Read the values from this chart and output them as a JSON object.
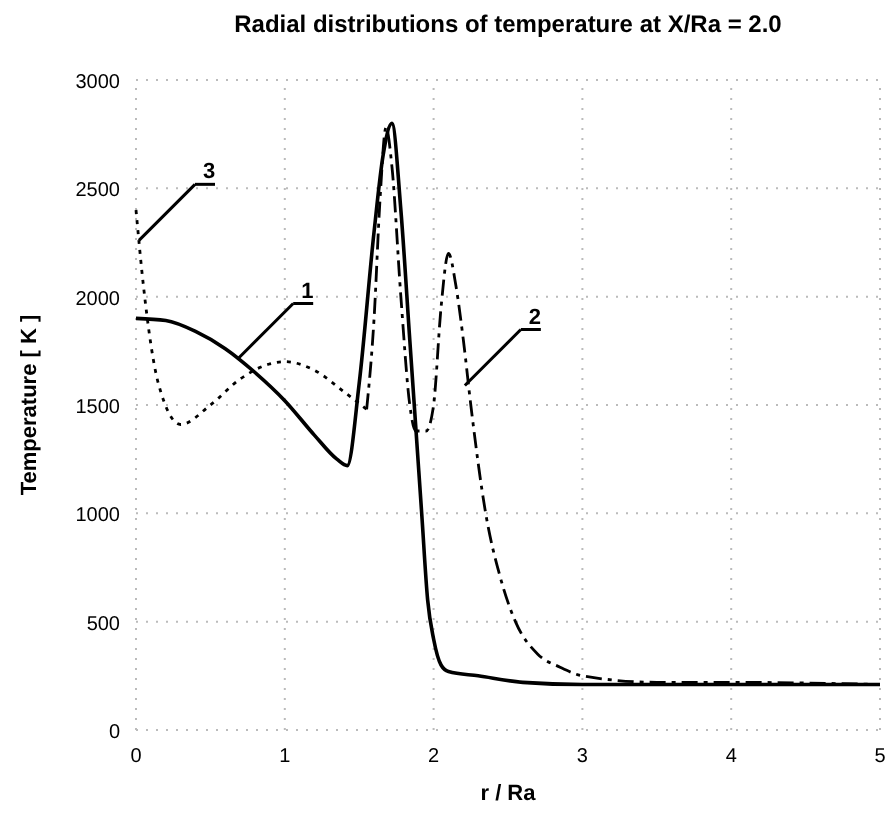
{
  "chart_data": {
    "type": "line",
    "title": "Radial distributions of temperature at X/Ra = 2.0",
    "xlabel": "r / Ra",
    "ylabel": "Temperature  [ K ]",
    "xlim": [
      0,
      5
    ],
    "ylim": [
      0,
      3000
    ],
    "xticks": [
      0,
      1,
      2,
      3,
      4,
      5
    ],
    "yticks": [
      0,
      500,
      1000,
      1500,
      2000,
      2500,
      3000
    ],
    "grid": true,
    "series": [
      {
        "color": "#000000",
        "line_style": "solid",
        "x": [
          0,
          0.2,
          0.4,
          0.6,
          0.8,
          1.0,
          1.2,
          1.35,
          1.42,
          1.5,
          1.6,
          1.66,
          1.72,
          1.78,
          1.84,
          1.88,
          1.92,
          1.96,
          2.0,
          2.05,
          2.1,
          2.3,
          2.6,
          3.0,
          4.0,
          5.0
        ],
        "values": [
          1900,
          1890,
          1840,
          1760,
          1650,
          1520,
          1360,
          1250,
          1220,
          1600,
          2300,
          2650,
          2800,
          2400,
          1800,
          1400,
          1000,
          600,
          420,
          300,
          270,
          250,
          220,
          210,
          210,
          210
        ]
      },
      {
        "color": "#000000",
        "line_style": "dashed",
        "x": [
          1.55,
          1.6,
          1.64,
          1.68,
          1.72,
          1.78,
          1.84,
          1.88,
          1.95,
          2.0,
          2.05,
          2.1,
          2.15,
          2.2,
          2.25,
          2.35,
          2.45,
          2.55,
          2.7,
          2.85,
          3.0,
          3.5,
          4.0,
          5.0
        ],
        "values": [
          1480,
          1900,
          2450,
          2780,
          2600,
          2000,
          1500,
          1380,
          1380,
          1500,
          1950,
          2200,
          2050,
          1800,
          1500,
          1000,
          700,
          500,
          350,
          290,
          250,
          220,
          220,
          210
        ]
      },
      {
        "color": "#000000",
        "line_style": "dotted",
        "x": [
          0,
          0.05,
          0.15,
          0.3,
          0.5,
          0.7,
          0.9,
          1.0,
          1.2,
          1.4,
          1.55
        ],
        "values": [
          2400,
          2050,
          1600,
          1410,
          1500,
          1620,
          1690,
          1700,
          1660,
          1560,
          1480
        ]
      }
    ],
    "annotations": [
      {
        "text": "1",
        "x": 0.68,
        "y": 1710
      },
      {
        "text": "2",
        "x": 2.21,
        "y": 1590
      },
      {
        "text": "3",
        "x": 0.02,
        "y": 2260
      }
    ]
  }
}
